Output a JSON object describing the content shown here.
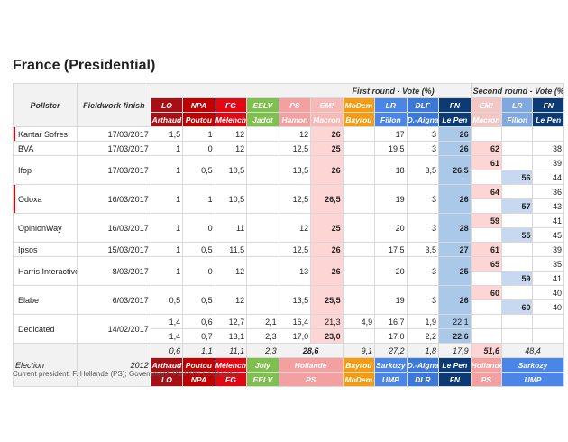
{
  "title": "France (Presidential)",
  "headers": {
    "pollster": "Pollster",
    "fieldwork": "Fieldwork finish",
    "round1": "First round - Vote (%)",
    "round2": "Second round - Vote (%)"
  },
  "colors": {
    "LO": "#a50f15",
    "NPA": "#c00000",
    "FG": "#e30613",
    "EELV": "#7fbf4d",
    "PS": "#f4a0a0",
    "EM": "#f7b8b8",
    "MoDem": "#f39c12",
    "LR": "#4a86e8",
    "DLF": "#3c78d8",
    "FN": "#0b3a75",
    "Macron2": "#f4c7c7",
    "Fillon2": "#7fa8e0",
    "LePen2": "#0b3a75"
  },
  "parties_r1": [
    {
      "party": "LO",
      "cand": "Arthaud"
    },
    {
      "party": "NPA",
      "cand": "Poutou"
    },
    {
      "party": "FG",
      "cand": "Mélench"
    },
    {
      "party": "EELV",
      "cand": "Jadot"
    },
    {
      "party": "PS",
      "cand": "Hamon"
    },
    {
      "party": "EM!",
      "cand": "Macron"
    },
    {
      "party": "MoDem",
      "cand": "Bayrou"
    },
    {
      "party": "LR",
      "cand": "Fillon"
    },
    {
      "party": "DLF",
      "cand": "D.-Aigna"
    },
    {
      "party": "FN",
      "cand": "Le Pen"
    }
  ],
  "parties_r2": [
    {
      "party": "EM!",
      "cand": "Macron"
    },
    {
      "party": "LR",
      "cand": "Fillon"
    },
    {
      "party": "FN",
      "cand": "Le Pen"
    }
  ],
  "rows": [
    {
      "pollster": "Kantar Sofres",
      "date": "17/03/2017",
      "mark": true,
      "r1": [
        "1,5",
        "1",
        "12",
        "",
        "12",
        "26",
        "",
        "17",
        "3",
        "26"
      ],
      "r2": [
        "",
        "",
        ""
      ]
    },
    {
      "pollster": "BVA",
      "date": "17/03/2017",
      "mark": false,
      "r1": [
        "1",
        "0",
        "12",
        "",
        "12,5",
        "25",
        "",
        "19,5",
        "3",
        "26"
      ],
      "r2": [
        "62",
        "",
        "38"
      ]
    },
    {
      "pollster": "Ifop",
      "date": "17/03/2017",
      "mark": false,
      "r1": [
        "1",
        "0,5",
        "10,5",
        "",
        "13,5",
        "26",
        "",
        "18",
        "3,5",
        "26,5"
      ],
      "r2": [
        "61",
        "",
        "39"
      ],
      "r2b": [
        "",
        "56",
        "44"
      ]
    },
    {
      "pollster": "Odoxa",
      "date": "16/03/2017",
      "mark": true,
      "r1": [
        "1",
        "1",
        "10,5",
        "",
        "12,5",
        "26,5",
        "",
        "19",
        "3",
        "26"
      ],
      "r2": [
        "64",
        "",
        "36"
      ],
      "r2b": [
        "",
        "57",
        "43"
      ]
    },
    {
      "pollster": "OpinionWay",
      "date": "16/03/2017",
      "mark": false,
      "r1": [
        "1",
        "0",
        "11",
        "",
        "12",
        "25",
        "",
        "20",
        "3",
        "28"
      ],
      "r2": [
        "59",
        "",
        "41"
      ],
      "r2b": [
        "",
        "55",
        "45"
      ]
    },
    {
      "pollster": "Ipsos",
      "date": "15/03/2017",
      "mark": false,
      "r1": [
        "1",
        "0,5",
        "11,5",
        "",
        "12,5",
        "26",
        "",
        "17,5",
        "3,5",
        "27"
      ],
      "r2": [
        "61",
        "",
        "39"
      ]
    },
    {
      "pollster": "Harris Interactive",
      "date": "8/03/2017",
      "mark": false,
      "r1": [
        "1",
        "0",
        "12",
        "",
        "13",
        "26",
        "",
        "20",
        "3",
        "25"
      ],
      "r2": [
        "65",
        "",
        "35"
      ],
      "r2b": [
        "",
        "59",
        "41"
      ]
    },
    {
      "pollster": "Elabe",
      "date": "6/03/2017",
      "mark": false,
      "r1": [
        "0,5",
        "0,5",
        "12",
        "",
        "13,5",
        "25,5",
        "",
        "19",
        "3",
        "26"
      ],
      "r2": [
        "60",
        "",
        "40"
      ],
      "r2b": [
        "",
        "60",
        "40"
      ]
    },
    {
      "pollster": "Dedicated",
      "date": "14/02/2017",
      "mark": false,
      "r1": [
        "1,4",
        "0,6",
        "12,7",
        "2,1",
        "16,4",
        "21,3",
        "4,9",
        "16,7",
        "1,9",
        "22,1"
      ],
      "r1b": [
        "1,4",
        "0,7",
        "13,1",
        "2,3",
        "17,0",
        "23,0",
        "",
        "17,0",
        "2,2",
        "22,6"
      ]
    }
  ],
  "election": {
    "label": "Election",
    "year": "2012",
    "r1": [
      "0,6",
      "1,1",
      "11,1",
      "2,3",
      "28,6",
      "9,1",
      "27,2",
      "1,8",
      "17,9"
    ],
    "r2": [
      "51,6",
      "48,4"
    ],
    "cands1": [
      "Arthaud",
      "Poutou",
      "Mélench",
      "Joly",
      "Hollande",
      "Bayrou",
      "Sarkozy",
      "D.-Aigna",
      "Le Pen"
    ],
    "parties1": [
      "LO",
      "NPA",
      "FG",
      "EELV",
      "PS",
      "MoDem",
      "UMP",
      "DLR",
      "FN"
    ],
    "cands2": [
      "Hollande",
      "Sarkozy"
    ],
    "parties2": [
      "PS",
      "UMP"
    ]
  },
  "footer": "Current president: F. Hollande (PS); Government: PS-PRG-Ecologistes"
}
